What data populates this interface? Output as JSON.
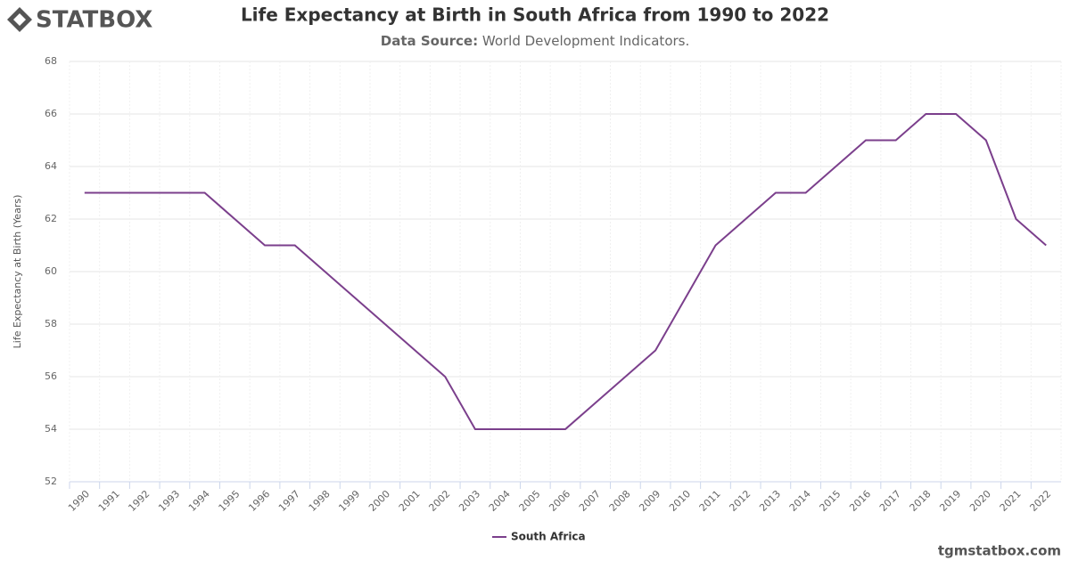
{
  "brand": "STATBOX",
  "footer": "tgmstatbox.com",
  "chart_data": {
    "type": "line",
    "title": "Life Expectancy at Birth in South Africa from 1990 to 2022",
    "source_label": "Data Source:",
    "source": "World Development Indicators.",
    "y_label": "Life Expectancy at Birth (Years)",
    "categories": [
      "1990",
      "1991",
      "1992",
      "1993",
      "1994",
      "1995",
      "1996",
      "1997",
      "1998",
      "1999",
      "2000",
      "2001",
      "2002",
      "2003",
      "2004",
      "2005",
      "2006",
      "2007",
      "2008",
      "2009",
      "2010",
      "2011",
      "2012",
      "2013",
      "2014",
      "2015",
      "2016",
      "2017",
      "2018",
      "2019",
      "2020",
      "2021",
      "2022"
    ],
    "series": [
      {
        "name": "South Africa",
        "color": "#7b3f8c",
        "values": [
          63,
          63,
          63,
          63,
          63,
          62,
          61,
          61,
          60,
          59,
          58,
          57,
          56,
          54,
          54,
          54,
          54,
          55,
          56,
          57,
          59,
          61,
          62,
          63,
          63,
          64,
          65,
          65,
          66,
          66,
          65,
          62,
          61
        ]
      }
    ],
    "ylim": [
      52,
      68
    ],
    "yticks": [
      52,
      54,
      56,
      58,
      60,
      62,
      64,
      66,
      68
    ],
    "grid": true,
    "legend": "bottom"
  }
}
